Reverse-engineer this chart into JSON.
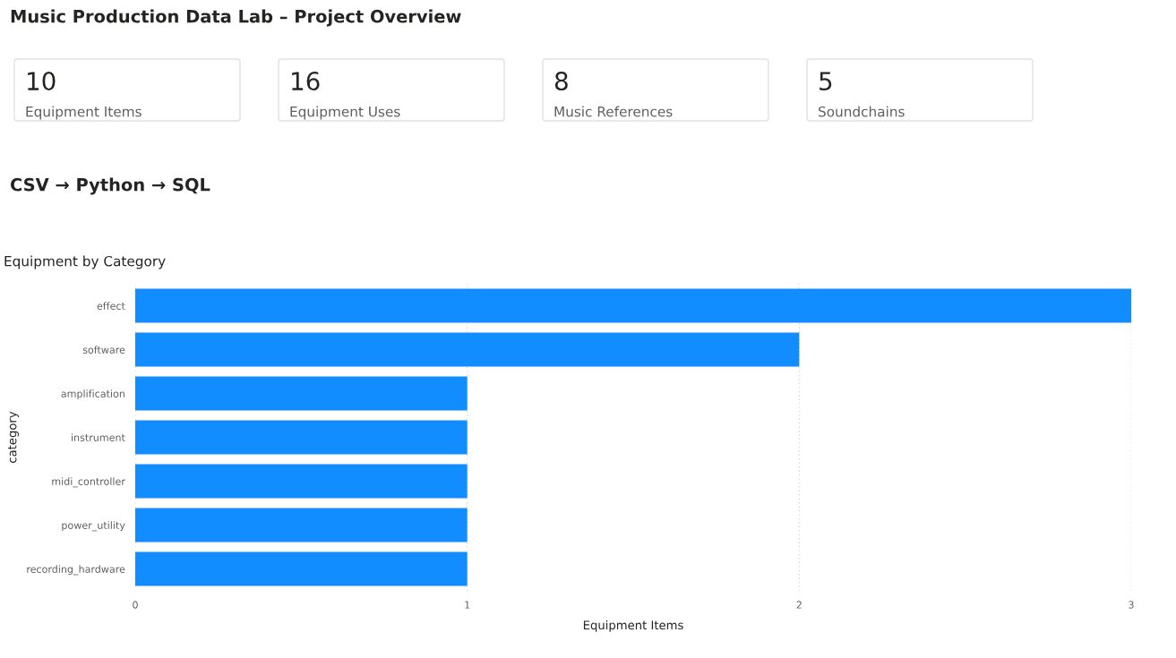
{
  "chart_data": [
    {
      "type": "other",
      "title": "Music Production Data Lab – Project Overview",
      "subtitle": "CSV → Python → SQL",
      "categories": [
        "Equipment Items",
        "Equipment Uses",
        "Music References",
        "Soundchains"
      ],
      "values": [
        10,
        16,
        8,
        5
      ],
      "data_labels": true
    },
    {
      "type": "bar",
      "orientation": "horizontal",
      "title": "Equipment by Category",
      "xlabel": "Equipment Items",
      "ylabel": "category",
      "categories": [
        "effect",
        "software",
        "amplification",
        "instrument",
        "midi_controller",
        "power_utility",
        "recording_hardware"
      ],
      "values": [
        3,
        2,
        1,
        1,
        1,
        1,
        1
      ],
      "color": "#118dff",
      "xlim": [
        0,
        3
      ],
      "xticks": [
        0,
        1,
        2,
        3
      ],
      "grid": "x",
      "legend": false
    }
  ]
}
